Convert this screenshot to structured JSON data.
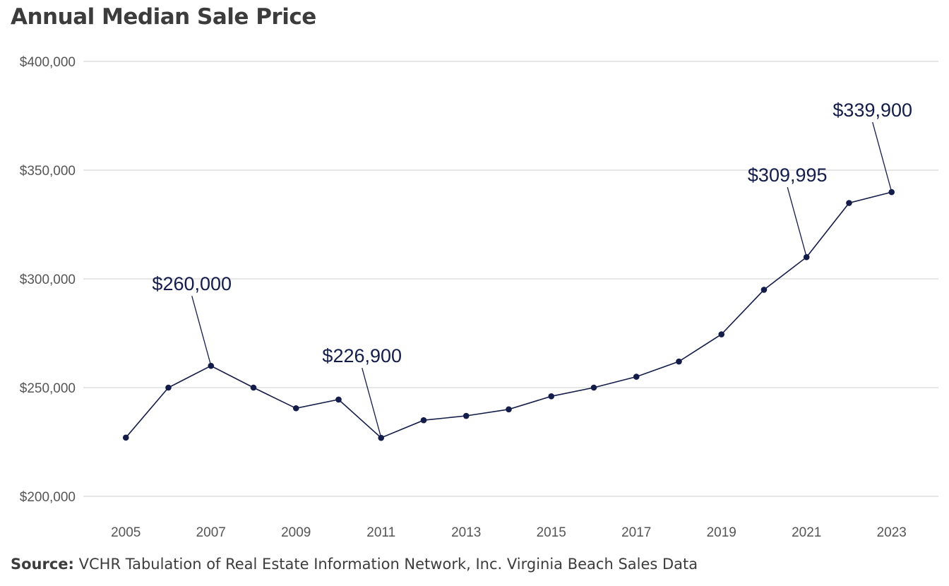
{
  "chart_title": "Annual Median Sale Price",
  "source": {
    "label": "Source:",
    "text": "VCHR Tabulation of Real Estate Information Network, Inc. Virginia Beach Sales Data"
  },
  "colors": {
    "series": "#141c4a",
    "grid": "#cfcfcf",
    "tick_text": "#555555",
    "title_text": "#3c3c3c"
  },
  "chart_data": {
    "type": "line",
    "title": "Annual Median Sale Price",
    "xlabel": "",
    "ylabel": "",
    "x": [
      2005,
      2006,
      2007,
      2008,
      2009,
      2010,
      2011,
      2012,
      2013,
      2014,
      2015,
      2016,
      2017,
      2018,
      2019,
      2020,
      2021,
      2022,
      2023
    ],
    "series": [
      {
        "values": [
          227000,
          250000,
          260000,
          250000,
          240500,
          244500,
          226900,
          235000,
          237000,
          240000,
          246000,
          250000,
          255000,
          262000,
          274500,
          295000,
          309995,
          334900,
          339900
        ]
      }
    ],
    "xlim": [
      2004,
      2024.1
    ],
    "ylim": [
      200000,
      400000
    ],
    "x_tick_labels": [
      "2005",
      "2007",
      "2009",
      "2011",
      "2013",
      "2015",
      "2017",
      "2019",
      "2021",
      "2023"
    ],
    "x_tick_values": [
      2005,
      2007,
      2009,
      2011,
      2013,
      2015,
      2017,
      2019,
      2021,
      2023
    ],
    "y_tick_labels": [
      "$200,000",
      "$250,000",
      "$300,000",
      "$350,000",
      "$400,000"
    ],
    "y_tick_values": [
      200000,
      250000,
      300000,
      350000,
      400000
    ],
    "grid": "horizontal",
    "legend": "none",
    "annotations": [
      {
        "x": 2007,
        "y": 260000,
        "label": "$260,000"
      },
      {
        "x": 2011,
        "y": 226900,
        "label": "$226,900"
      },
      {
        "x": 2021,
        "y": 309995,
        "label": "$309,995"
      },
      {
        "x": 2023,
        "y": 339900,
        "label": "$339,900"
      }
    ]
  }
}
